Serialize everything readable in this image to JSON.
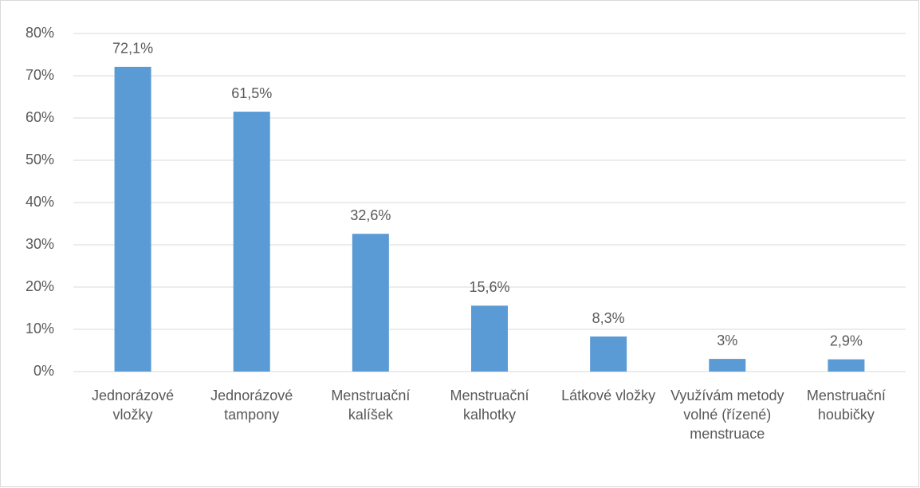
{
  "chart_data": {
    "type": "bar",
    "categories": [
      "Jednorázové vložky",
      "Jednorázové tampony",
      "Menstruační kalíšek",
      "Menstruační kalhotky",
      "Látkové vložky",
      "Využívám metody volné (řízené) menstruace",
      "Menstruační houbičky"
    ],
    "values": [
      72.1,
      61.5,
      32.6,
      15.6,
      8.3,
      3,
      2.9
    ],
    "value_labels": [
      "72,1%",
      "61,5%",
      "32,6%",
      "15,6%",
      "8,3%",
      "3%",
      "2,9%"
    ],
    "color": "#5b9bd5",
    "ylim": [
      0,
      80
    ],
    "yticks": [
      {
        "value": 0,
        "label": "0%"
      },
      {
        "value": 10,
        "label": "10%"
      },
      {
        "value": 20,
        "label": "20%"
      },
      {
        "value": 30,
        "label": "30%"
      },
      {
        "value": 40,
        "label": "40%"
      },
      {
        "value": 50,
        "label": "50%"
      },
      {
        "value": 60,
        "label": "60%"
      },
      {
        "value": 70,
        "label": "70%"
      },
      {
        "value": 80,
        "label": "80%"
      }
    ],
    "grid": true
  }
}
